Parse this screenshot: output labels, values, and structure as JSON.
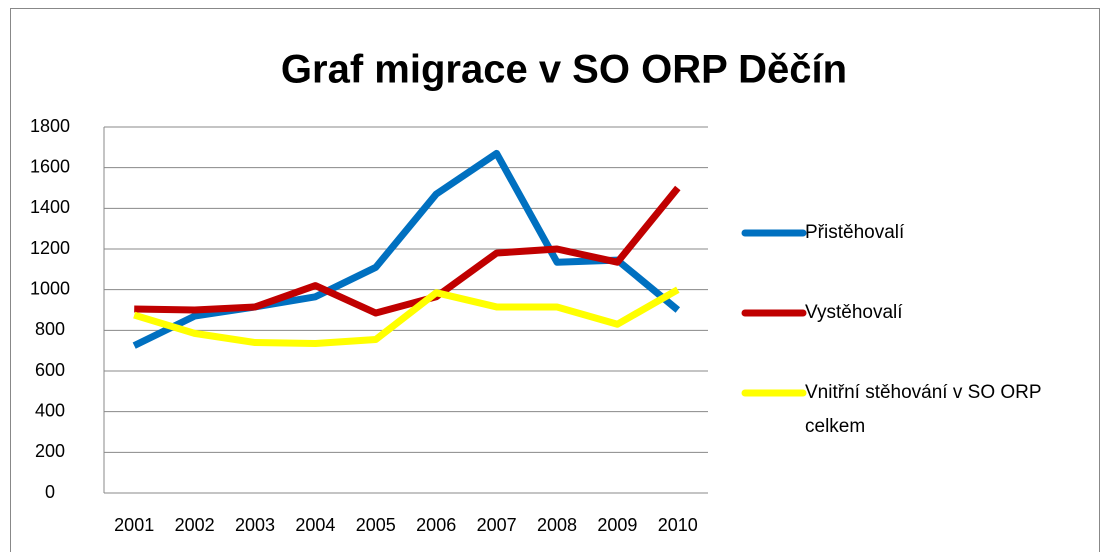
{
  "chart_data": {
    "type": "line",
    "title": "Graf migrace v SO ORP Děčín",
    "categories": [
      "2001",
      "2002",
      "2003",
      "2004",
      "2005",
      "2006",
      "2007",
      "2008",
      "2009",
      "2010"
    ],
    "series": [
      {
        "name": "Přistěhovalí",
        "color": "#0070c0",
        "values": [
          725,
          870,
          915,
          965,
          1110,
          1470,
          1670,
          1135,
          1145,
          900
        ]
      },
      {
        "name": "Vystěhovalí",
        "color": "#c00000",
        "values": [
          905,
          900,
          915,
          1020,
          885,
          965,
          1180,
          1200,
          1135,
          1500
        ]
      },
      {
        "name": "Vnitřní stěhování v SO ORP celkem",
        "color": "#ffff00",
        "values": [
          875,
          785,
          740,
          735,
          755,
          985,
          915,
          915,
          830,
          1000
        ]
      }
    ],
    "ylim": [
      0,
      1800
    ],
    "yticks": [
      0,
      200,
      400,
      600,
      800,
      1000,
      1200,
      1400,
      1600,
      1800
    ],
    "grid": true,
    "legend": "right"
  }
}
